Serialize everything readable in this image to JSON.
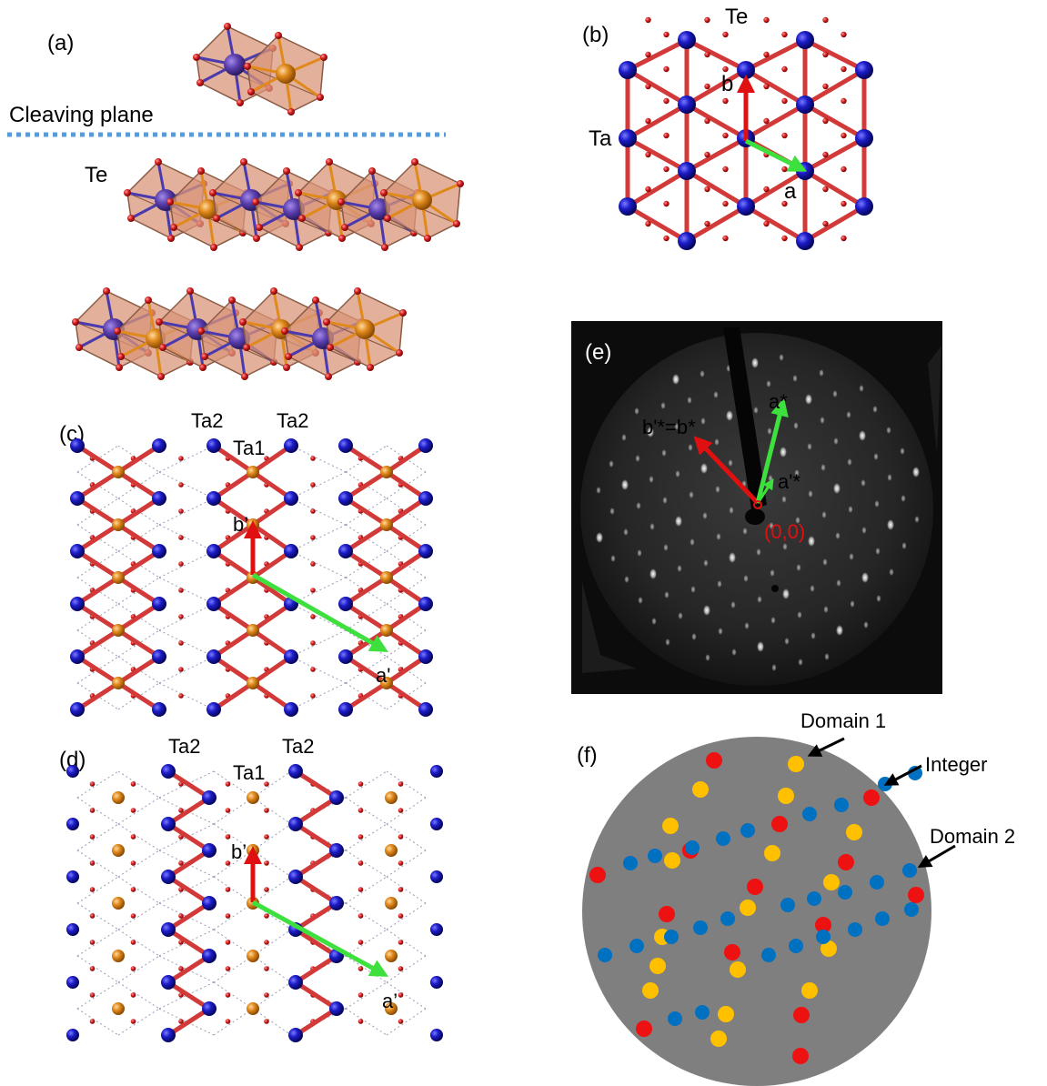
{
  "colors": {
    "ta_blue": "#1c1cc8",
    "ta_orange": "#e08a1c",
    "te_red": "#d41e1e",
    "bond_red": "#d23a3a",
    "octahedron": "#d9967a",
    "arrow_red": "#e01010",
    "arrow_green": "#3ee03e",
    "leed_bg": "#0c0c0c",
    "domain_gray": "#7f7f7f",
    "spot_integer": "#ee1111",
    "spot_domain1": "#ffc000",
    "spot_domain2": "#0070c0",
    "cleave_line": "#5b9bd5"
  },
  "panels": {
    "a": {
      "label": "(a)",
      "cleaving": "Cleaving plane",
      "te": "Te"
    },
    "b": {
      "label": "(b)",
      "te": "Te",
      "ta": "Ta",
      "vec_a": "a",
      "vec_b": "b"
    },
    "c": {
      "label": "(c)",
      "ta2_left": "Ta2",
      "ta2_right": "Ta2",
      "ta1": "Ta1",
      "vec_a": "a'",
      "vec_b": "b’"
    },
    "d": {
      "label": "(d)",
      "ta2_left": "Ta2",
      "ta2_right": "Ta2",
      "ta1": "Ta1",
      "vec_a": "a’",
      "vec_b": "b’"
    },
    "e": {
      "label": "(e)",
      "astar": "a*",
      "bstar": "b'*=b*",
      "aprime": "a'*",
      "origin": "(0,0)"
    },
    "f": {
      "label": "(f)",
      "domain1": "Domain 1",
      "integer": "Integer",
      "domain2": "Domain 2"
    }
  }
}
